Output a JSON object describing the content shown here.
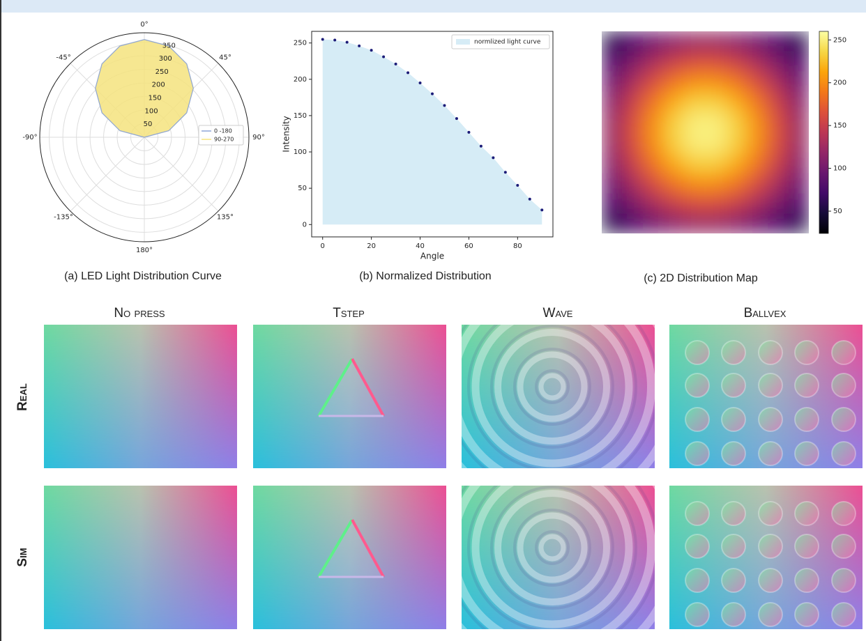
{
  "chart_data": [
    {
      "type": "polar",
      "caption": "(a) LED Light Distribution Curve",
      "angle_ticks": [
        {
          "value": 0,
          "label": "0°"
        },
        {
          "value": 45,
          "label": "45°"
        },
        {
          "value": 90,
          "label": "90°"
        },
        {
          "value": 135,
          "label": "135°"
        },
        {
          "value": 180,
          "label": "180°"
        },
        {
          "value": -135,
          "label": "-135°"
        },
        {
          "value": -90,
          "label": "-90°"
        },
        {
          "value": -45,
          "label": "-45°"
        }
      ],
      "rlim": [
        0,
        385
      ],
      "rticks": [
        50,
        100,
        150,
        200,
        250,
        300,
        350
      ],
      "theta": [
        -90,
        -75,
        -60,
        -45,
        -30,
        -15,
        0,
        15,
        30,
        45,
        60,
        75,
        90
      ],
      "series": [
        {
          "name": "0 -180",
          "color": "#8ea6d8",
          "filled": false,
          "values": [
            0,
            93,
            180,
            255,
            312,
            348,
            360,
            348,
            312,
            255,
            180,
            93,
            0
          ]
        },
        {
          "name": "90-270",
          "color": "#f5e37e",
          "filled": true,
          "values": [
            0,
            93,
            180,
            255,
            312,
            348,
            360,
            348,
            312,
            255,
            180,
            93,
            0
          ]
        }
      ],
      "legend": "right"
    },
    {
      "type": "area",
      "caption": "(b) Normalized Distribution",
      "x_label": "Angle",
      "y_label": "Intensity",
      "x": [
        0,
        5,
        10,
        15,
        20,
        25,
        30,
        35,
        40,
        45,
        50,
        55,
        60,
        65,
        70,
        75,
        80,
        85,
        90
      ],
      "series": [
        {
          "name": "normlized light curve",
          "color": "#d6ecf6",
          "marker_color": "#1c1c78",
          "values": [
            255,
            254,
            251,
            246,
            240,
            231,
            221,
            209,
            195,
            180,
            164,
            146,
            127,
            108,
            92,
            72,
            54,
            35,
            20
          ]
        }
      ],
      "xlim": [
        -4.5,
        94.5
      ],
      "xticks": [
        0,
        20,
        40,
        60,
        80
      ],
      "ylim": [
        -17,
        266
      ],
      "yticks": [
        0,
        50,
        100,
        150,
        200,
        250
      ],
      "legend": "upper right"
    },
    {
      "type": "heatmap",
      "caption": "(c) 2D Distribution Map",
      "cmap": "inferno",
      "clim": [
        24,
        260
      ],
      "cticks": [
        50,
        100,
        150,
        200,
        250
      ],
      "values": [
        [
          59,
          79,
          98,
          113,
          122,
          122,
          113,
          98,
          79,
          59
        ],
        [
          79,
          106,
          131,
          151,
          163,
          163,
          151,
          131,
          106,
          79
        ],
        [
          98,
          131,
          163,
          188,
          202,
          202,
          188,
          163,
          131,
          98
        ],
        [
          113,
          151,
          188,
          217,
          233,
          233,
          217,
          188,
          151,
          113
        ],
        [
          122,
          163,
          202,
          233,
          250,
          250,
          233,
          202,
          163,
          122
        ],
        [
          122,
          163,
          202,
          233,
          250,
          250,
          233,
          202,
          163,
          122
        ],
        [
          113,
          151,
          188,
          217,
          233,
          233,
          217,
          188,
          151,
          113
        ],
        [
          98,
          131,
          163,
          188,
          202,
          202,
          188,
          163,
          131,
          98
        ],
        [
          79,
          106,
          131,
          151,
          163,
          163,
          151,
          131,
          106,
          79
        ],
        [
          59,
          79,
          98,
          113,
          122,
          122,
          113,
          98,
          79,
          59
        ]
      ]
    }
  ],
  "image_grid": {
    "columns": [
      "No press",
      "Tstep",
      "Wave",
      "Ballvex"
    ],
    "rows": [
      "Real",
      "Sim"
    ]
  }
}
